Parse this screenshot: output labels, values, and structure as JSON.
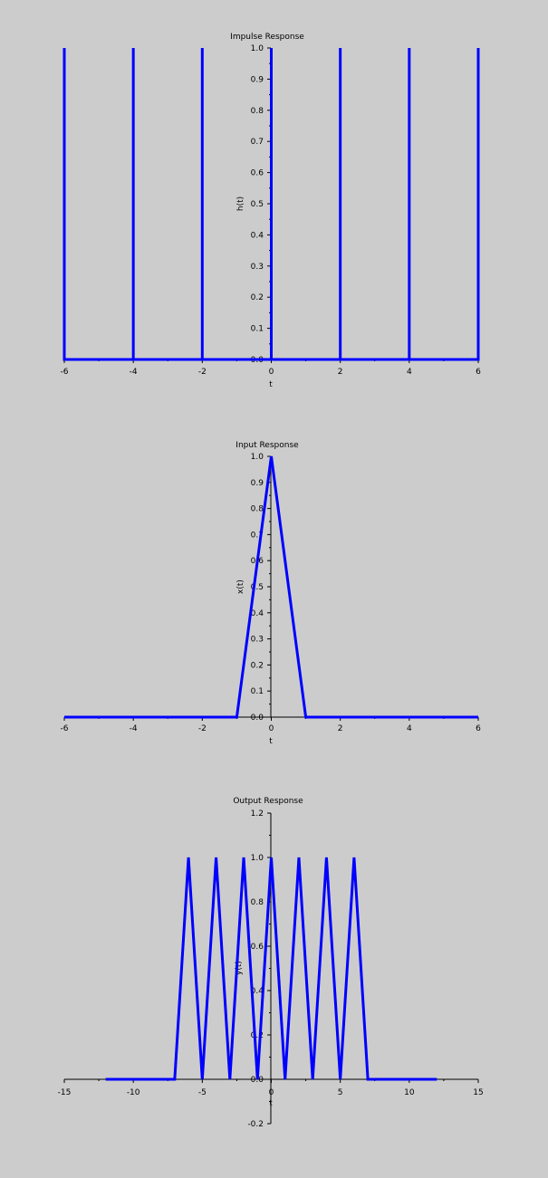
{
  "colors": {
    "background": "#cccccc",
    "line": "#0000ff",
    "axis": "#000000"
  },
  "chart_data": [
    {
      "type": "line",
      "title": "Impulse Response",
      "xlabel": "t",
      "ylabel": "h(t)",
      "xlim": [
        -6,
        6
      ],
      "ylim": [
        0,
        1.0
      ],
      "xticks": [
        "-6",
        "-4",
        "-2",
        "0",
        "2",
        "4",
        "6"
      ],
      "yticks": [
        "0.0",
        "0.1",
        "0.2",
        "0.3",
        "0.4",
        "0.5",
        "0.6",
        "0.7",
        "0.8",
        "0.9",
        "1.0"
      ],
      "grid": false,
      "series": [
        {
          "x": [
            -6,
            -6,
            -6,
            -4,
            -4,
            -4,
            -2,
            -2,
            -2,
            0,
            0,
            0,
            2,
            2,
            2,
            4,
            4,
            4,
            6,
            6,
            6
          ],
          "y": [
            0,
            1,
            0,
            0,
            1,
            0,
            0,
            1,
            0,
            0,
            1,
            0,
            0,
            1,
            0,
            0,
            1,
            0,
            0,
            1,
            0
          ]
        }
      ]
    },
    {
      "type": "line",
      "title": "Input Response",
      "xlabel": "t",
      "ylabel": "x(t)",
      "xlim": [
        -6,
        6
      ],
      "ylim": [
        0,
        1.0
      ],
      "xticks": [
        "-6",
        "-4",
        "-2",
        "0",
        "2",
        "4",
        "6"
      ],
      "yticks": [
        "0.0",
        "0.1",
        "0.2",
        "0.3",
        "0.4",
        "0.5",
        "0.6",
        "0.7",
        "0.8",
        "0.9",
        "1.0"
      ],
      "grid": false,
      "series": [
        {
          "x": [
            -6,
            -1,
            0,
            1,
            6
          ],
          "y": [
            0,
            0,
            1,
            0,
            0
          ]
        }
      ]
    },
    {
      "type": "line",
      "title": "Output Response",
      "xlabel": "t",
      "ylabel": "y(t)",
      "xlim": [
        -15,
        15
      ],
      "ylim": [
        -0.2,
        1.2
      ],
      "xticks": [
        "-15",
        "-10",
        "-5",
        "0",
        "5",
        "10",
        "15"
      ],
      "yticks": [
        "-0.2",
        "0.0",
        "0.2",
        "0.4",
        "0.6",
        "0.8",
        "1.0",
        "1.2"
      ],
      "grid": false,
      "series": [
        {
          "x": [
            -12,
            -7,
            -6,
            -5,
            -4,
            -3,
            -2,
            -1,
            0,
            1,
            2,
            3,
            4,
            5,
            6,
            7,
            12
          ],
          "y": [
            0,
            0,
            1,
            0,
            1,
            0,
            1,
            0,
            1,
            0,
            1,
            0,
            1,
            0,
            1,
            0,
            0
          ]
        }
      ]
    }
  ]
}
